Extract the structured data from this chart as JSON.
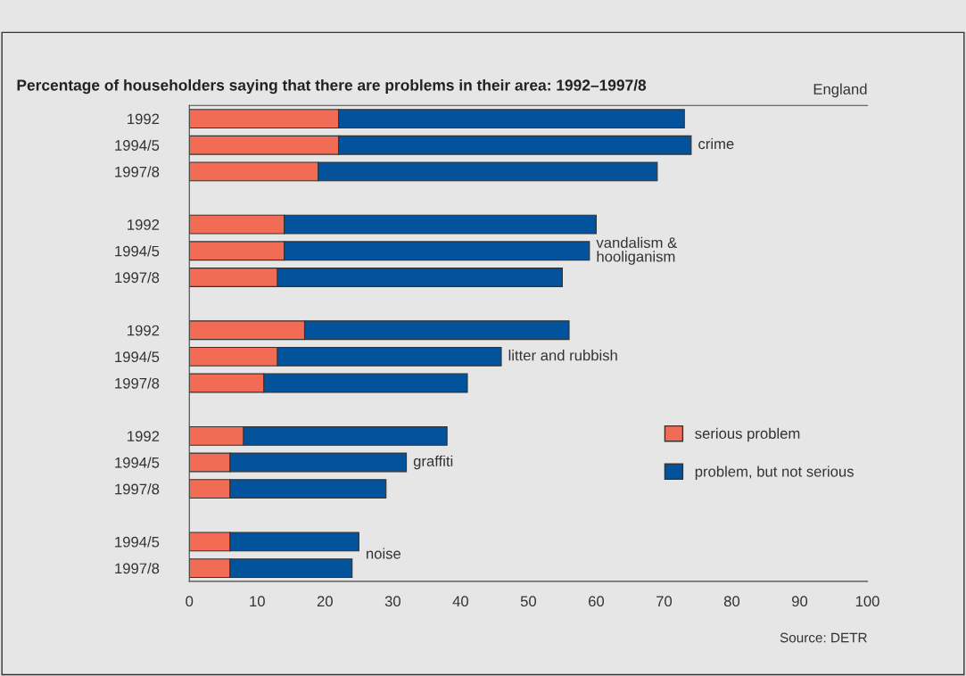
{
  "chart_data": {
    "type": "bar",
    "orientation": "horizontal",
    "stacked": true,
    "title": "Percentage of householders saying that there are problems in their area: 1992–1997/8",
    "subtitle": "England",
    "categories": [
      "1992",
      "1994/5",
      "1997/8",
      null,
      "1992",
      "1994/5",
      "1997/8",
      null,
      "1992",
      "1994/5",
      "1997/8",
      null,
      "1992",
      "1994/5",
      "1997/8",
      null,
      "1994/5",
      "1997/8"
    ],
    "series": [
      {
        "name": "serious problem",
        "color": "#f26b55",
        "values": [
          22,
          22,
          19,
          null,
          14,
          14,
          13,
          null,
          17,
          13,
          11,
          null,
          8,
          6,
          6,
          null,
          6,
          6
        ]
      },
      {
        "name": "problem, but not serious",
        "color": "#02529c",
        "values": [
          51,
          52,
          50,
          null,
          46,
          45,
          42,
          null,
          39,
          33,
          30,
          null,
          30,
          26,
          23,
          null,
          19,
          18
        ]
      }
    ],
    "xlim": [
      0,
      100
    ],
    "xticks": [
      0,
      10,
      20,
      30,
      40,
      50,
      60,
      70,
      80,
      90,
      100
    ],
    "annotations": [
      "crime",
      "vandalism &\nhooliganism",
      "litter and rubbish",
      "graffiti",
      "noise",
      "Source: DETR"
    ],
    "legend": "right",
    "grid": false
  }
}
